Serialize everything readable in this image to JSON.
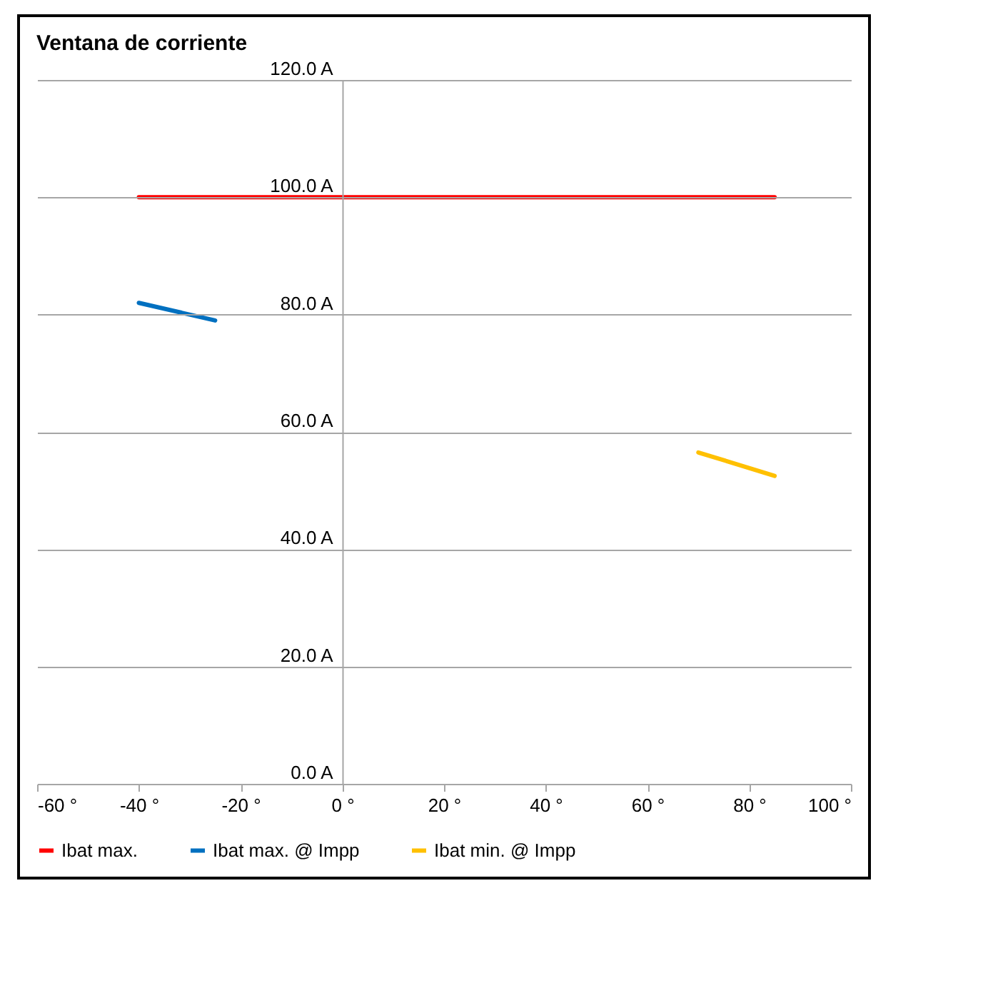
{
  "chart_data": {
    "type": "line",
    "title": "Ventana de corriente",
    "xlim": [
      -60,
      100
    ],
    "xticks": [
      {
        "value": -60,
        "label": "-60 °"
      },
      {
        "value": -40,
        "label": "-40 °"
      },
      {
        "value": -20,
        "label": "-20 °"
      },
      {
        "value": 0,
        "label": "0 °"
      },
      {
        "value": 20,
        "label": "20 °"
      },
      {
        "value": 40,
        "label": "40 °"
      },
      {
        "value": 60,
        "label": "60 °"
      },
      {
        "value": 80,
        "label": "80 °"
      },
      {
        "value": 100,
        "label": "100 °"
      }
    ],
    "ylim": [
      0,
      120
    ],
    "yticks": [
      {
        "value": 0,
        "label": "0.0 A"
      },
      {
        "value": 20,
        "label": "20.0 A"
      },
      {
        "value": 40,
        "label": "40.0 A"
      },
      {
        "value": 60,
        "label": "60.0 A"
      },
      {
        "value": 80,
        "label": "80.0 A"
      },
      {
        "value": 100,
        "label": "100.0 A"
      },
      {
        "value": 120,
        "label": "120.0 A"
      }
    ],
    "grid": "y",
    "legend": "bottom",
    "marker": "none",
    "series": [
      {
        "name": "Ibat max.",
        "color": "#ff0000",
        "x": [
          -40,
          85
        ],
        "values": [
          100,
          100
        ]
      },
      {
        "name": "Ibat max. @ Impp",
        "color": "#0070c0",
        "x": [
          -40,
          -25
        ],
        "values": [
          82,
          79
        ]
      },
      {
        "name": "Ibat min. @ Impp",
        "color": "#ffc000",
        "x": [
          70,
          85
        ],
        "values": [
          56.5,
          52.5
        ]
      }
    ]
  }
}
